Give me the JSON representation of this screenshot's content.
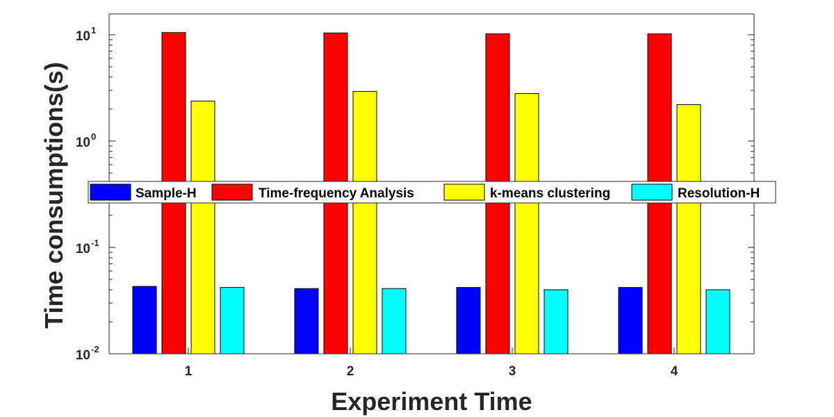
{
  "chart_data": {
    "type": "bar",
    "title": "",
    "xlabel": "Experiment Time",
    "ylabel": "Time consumptions(s)",
    "yscale": "log",
    "ylim": [
      0.01,
      12
    ],
    "categories": [
      "1",
      "2",
      "3",
      "4"
    ],
    "y_ticks": [
      {
        "base": "10",
        "exp": "-2",
        "value": 0.01
      },
      {
        "base": "10",
        "exp": "-1",
        "value": 0.1
      },
      {
        "base": "10",
        "exp": "0",
        "value": 1
      },
      {
        "base": "10",
        "exp": "1",
        "value": 10
      }
    ],
    "legend_position": "center (horizontal, single row)",
    "grid": false,
    "series": [
      {
        "name": "Sample-H",
        "color": "#0000ff",
        "values": [
          0.043,
          0.041,
          0.042,
          0.042
        ]
      },
      {
        "name": "Time-frequency Analysis",
        "color": "#ff0000",
        "values": [
          10.5,
          10.4,
          10.2,
          10.2
        ]
      },
      {
        "name": "k-means clustering",
        "color": "#ffff00",
        "values": [
          2.38,
          2.93,
          2.8,
          2.2
        ]
      },
      {
        "name": "Resolution-H",
        "color": "#00ffff",
        "values": [
          0.042,
          0.041,
          0.04,
          0.04
        ]
      }
    ]
  }
}
